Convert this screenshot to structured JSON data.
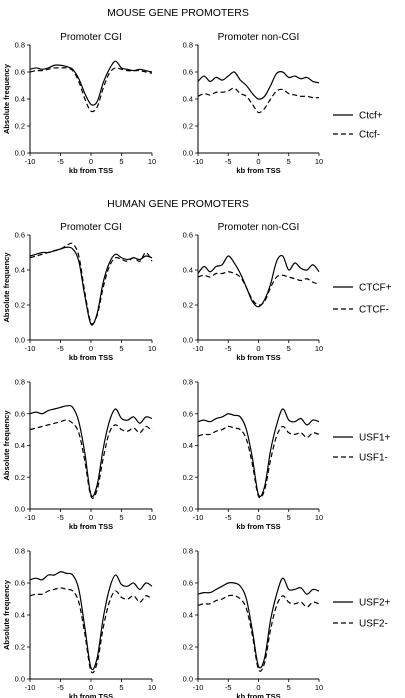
{
  "titles": {
    "mouse": "MOUSE GENE PROMOTERS",
    "human": "HUMAN GENE PROMOTERS"
  },
  "chart_data": [
    {
      "type": "line",
      "section": "mouse",
      "row": 0,
      "col": 0,
      "title": "Promoter CGI",
      "xlabel": "kb from TSS",
      "ylabel": "Absolute frequency",
      "xlim": [
        -10,
        10
      ],
      "ylim": [
        0,
        0.8
      ],
      "xticks": [
        -10,
        -5,
        0,
        5,
        10
      ],
      "yticks": [
        0.0,
        0.2,
        0.4,
        0.6,
        0.8
      ],
      "x": [
        -10,
        -9,
        -8,
        -7,
        -6,
        -5,
        -4,
        -3,
        -2,
        -1,
        0,
        1,
        2,
        3,
        4,
        5,
        6,
        7,
        8,
        9,
        10
      ],
      "series": [
        {
          "name": "Ctcf+",
          "style": "solid",
          "values": [
            0.62,
            0.63,
            0.62,
            0.63,
            0.65,
            0.65,
            0.64,
            0.62,
            0.55,
            0.44,
            0.36,
            0.38,
            0.52,
            0.62,
            0.68,
            0.63,
            0.62,
            0.61,
            0.62,
            0.61,
            0.6
          ]
        },
        {
          "name": "Ctcf-",
          "style": "dashed",
          "values": [
            0.6,
            0.61,
            0.61,
            0.62,
            0.63,
            0.63,
            0.63,
            0.61,
            0.53,
            0.4,
            0.31,
            0.34,
            0.48,
            0.59,
            0.63,
            0.62,
            0.61,
            0.61,
            0.61,
            0.6,
            0.59
          ]
        }
      ]
    },
    {
      "type": "line",
      "section": "mouse",
      "row": 0,
      "col": 1,
      "title": "Promoter non-CGI",
      "xlabel": "kb from TSS",
      "ylabel": "",
      "xlim": [
        -10,
        10
      ],
      "ylim": [
        0,
        0.8
      ],
      "xticks": [
        -10,
        -5,
        0,
        5,
        10
      ],
      "yticks": [
        0.0,
        0.2,
        0.4,
        0.6,
        0.8
      ],
      "x": [
        -10,
        -9,
        -8,
        -7,
        -6,
        -5,
        -4,
        -3,
        -2,
        -1,
        0,
        1,
        2,
        3,
        4,
        5,
        6,
        7,
        8,
        9,
        10
      ],
      "series": [
        {
          "name": "Ctcf+",
          "style": "solid",
          "values": [
            0.53,
            0.57,
            0.53,
            0.56,
            0.54,
            0.57,
            0.6,
            0.54,
            0.5,
            0.44,
            0.4,
            0.42,
            0.5,
            0.59,
            0.6,
            0.56,
            0.57,
            0.55,
            0.56,
            0.53,
            0.52
          ]
        },
        {
          "name": "Ctcf-",
          "style": "dashed",
          "values": [
            0.42,
            0.44,
            0.43,
            0.45,
            0.45,
            0.46,
            0.48,
            0.44,
            0.42,
            0.36,
            0.3,
            0.33,
            0.4,
            0.46,
            0.47,
            0.44,
            0.43,
            0.42,
            0.42,
            0.41,
            0.41
          ]
        }
      ]
    },
    {
      "type": "line",
      "section": "human",
      "row": 1,
      "col": 0,
      "title": "Promoter CGI",
      "xlabel": "kb from TSS",
      "ylabel": "Absolute frequency",
      "xlim": [
        -10,
        10
      ],
      "ylim": [
        0,
        0.6
      ],
      "xticks": [
        -10,
        -5,
        0,
        5,
        10
      ],
      "yticks": [
        0.0,
        0.2,
        0.4,
        0.6
      ],
      "x": [
        -10,
        -9,
        -8,
        -7,
        -6,
        -5,
        -4,
        -3,
        -2,
        -1,
        0,
        1,
        2,
        3,
        4,
        5,
        6,
        7,
        8,
        9,
        10
      ],
      "series": [
        {
          "name": "CTCF+",
          "style": "solid",
          "values": [
            0.48,
            0.49,
            0.5,
            0.5,
            0.51,
            0.52,
            0.53,
            0.52,
            0.45,
            0.25,
            0.09,
            0.15,
            0.33,
            0.44,
            0.49,
            0.47,
            0.46,
            0.47,
            0.46,
            0.48,
            0.47
          ]
        },
        {
          "name": "CTCF-",
          "style": "dashed",
          "values": [
            0.47,
            0.48,
            0.49,
            0.5,
            0.51,
            0.52,
            0.54,
            0.55,
            0.48,
            0.27,
            0.1,
            0.14,
            0.3,
            0.42,
            0.47,
            0.46,
            0.45,
            0.47,
            0.45,
            0.5,
            0.45
          ]
        }
      ]
    },
    {
      "type": "line",
      "section": "human",
      "row": 1,
      "col": 1,
      "title": "Promoter non-CGI",
      "xlabel": "kb from TSS",
      "ylabel": "",
      "xlim": [
        -10,
        10
      ],
      "ylim": [
        0,
        0.6
      ],
      "xticks": [
        -10,
        -5,
        0,
        5,
        10
      ],
      "yticks": [
        0.0,
        0.2,
        0.4,
        0.6
      ],
      "x": [
        -10,
        -9,
        -8,
        -7,
        -6,
        -5,
        -4,
        -3,
        -2,
        -1,
        0,
        1,
        2,
        3,
        4,
        5,
        6,
        7,
        8,
        9,
        10
      ],
      "series": [
        {
          "name": "CTCF+",
          "style": "solid",
          "values": [
            0.38,
            0.42,
            0.39,
            0.42,
            0.43,
            0.48,
            0.44,
            0.38,
            0.3,
            0.22,
            0.19,
            0.23,
            0.32,
            0.45,
            0.48,
            0.4,
            0.44,
            0.41,
            0.4,
            0.43,
            0.39
          ]
        },
        {
          "name": "CTCF-",
          "style": "dashed",
          "values": [
            0.36,
            0.37,
            0.36,
            0.38,
            0.38,
            0.39,
            0.38,
            0.36,
            0.3,
            0.23,
            0.2,
            0.22,
            0.3,
            0.36,
            0.37,
            0.36,
            0.35,
            0.34,
            0.35,
            0.33,
            0.32
          ]
        }
      ]
    },
    {
      "type": "line",
      "section": "human",
      "row": 2,
      "col": 0,
      "title": "",
      "xlabel": "kb from TSS",
      "ylabel": "Absolute frequency",
      "xlim": [
        -10,
        10
      ],
      "ylim": [
        0,
        0.8
      ],
      "xticks": [
        -10,
        -5,
        0,
        5,
        10
      ],
      "yticks": [
        0.0,
        0.2,
        0.4,
        0.6,
        0.8
      ],
      "x": [
        -10,
        -9,
        -8,
        -7,
        -6,
        -5,
        -4,
        -3,
        -2,
        -1,
        0,
        1,
        2,
        3,
        4,
        5,
        6,
        7,
        8,
        9,
        10
      ],
      "series": [
        {
          "name": "USF1+",
          "style": "solid",
          "values": [
            0.6,
            0.61,
            0.6,
            0.62,
            0.63,
            0.64,
            0.65,
            0.64,
            0.55,
            0.35,
            0.09,
            0.15,
            0.38,
            0.55,
            0.63,
            0.57,
            0.56,
            0.58,
            0.54,
            0.58,
            0.57
          ]
        },
        {
          "name": "USF1-",
          "style": "dashed",
          "values": [
            0.5,
            0.51,
            0.52,
            0.53,
            0.54,
            0.55,
            0.56,
            0.54,
            0.48,
            0.3,
            0.08,
            0.12,
            0.32,
            0.48,
            0.53,
            0.5,
            0.49,
            0.51,
            0.48,
            0.52,
            0.49
          ]
        }
      ]
    },
    {
      "type": "line",
      "section": "human",
      "row": 2,
      "col": 1,
      "title": "",
      "xlabel": "kb from TSS",
      "ylabel": "",
      "xlim": [
        -10,
        10
      ],
      "ylim": [
        0,
        0.8
      ],
      "xticks": [
        -10,
        -5,
        0,
        5,
        10
      ],
      "yticks": [
        0.0,
        0.2,
        0.4,
        0.6,
        0.8
      ],
      "x": [
        -10,
        -9,
        -8,
        -7,
        -6,
        -5,
        -4,
        -3,
        -2,
        -1,
        0,
        1,
        2,
        3,
        4,
        5,
        6,
        7,
        8,
        9,
        10
      ],
      "series": [
        {
          "name": "USF1+",
          "style": "solid",
          "values": [
            0.55,
            0.56,
            0.55,
            0.57,
            0.58,
            0.6,
            0.59,
            0.58,
            0.5,
            0.32,
            0.09,
            0.14,
            0.37,
            0.53,
            0.63,
            0.56,
            0.55,
            0.57,
            0.53,
            0.56,
            0.55
          ]
        },
        {
          "name": "USF1-",
          "style": "dashed",
          "values": [
            0.46,
            0.47,
            0.47,
            0.49,
            0.5,
            0.52,
            0.51,
            0.5,
            0.44,
            0.28,
            0.08,
            0.12,
            0.31,
            0.46,
            0.52,
            0.48,
            0.47,
            0.48,
            0.45,
            0.48,
            0.47
          ]
        }
      ]
    },
    {
      "type": "line",
      "section": "human",
      "row": 3,
      "col": 0,
      "title": "",
      "xlabel": "kb from TSS",
      "ylabel": "Absolute frequency",
      "xlim": [
        -10,
        10
      ],
      "ylim": [
        0,
        0.8
      ],
      "xticks": [
        -10,
        -5,
        0,
        5,
        10
      ],
      "yticks": [
        0.0,
        0.2,
        0.4,
        0.6,
        0.8
      ],
      "x": [
        -10,
        -9,
        -8,
        -7,
        -6,
        -5,
        -4,
        -3,
        -2,
        -1,
        0,
        1,
        2,
        3,
        4,
        5,
        6,
        7,
        8,
        9,
        10
      ],
      "series": [
        {
          "name": "USF2+",
          "style": "solid",
          "values": [
            0.62,
            0.63,
            0.62,
            0.65,
            0.65,
            0.67,
            0.66,
            0.65,
            0.56,
            0.32,
            0.07,
            0.13,
            0.38,
            0.56,
            0.65,
            0.59,
            0.58,
            0.6,
            0.56,
            0.6,
            0.58
          ]
        },
        {
          "name": "USF2-",
          "style": "dashed",
          "values": [
            0.52,
            0.53,
            0.53,
            0.55,
            0.56,
            0.57,
            0.56,
            0.55,
            0.48,
            0.28,
            0.05,
            0.1,
            0.32,
            0.48,
            0.55,
            0.51,
            0.5,
            0.52,
            0.48,
            0.52,
            0.5
          ]
        }
      ]
    },
    {
      "type": "line",
      "section": "human",
      "row": 3,
      "col": 1,
      "title": "",
      "xlabel": "kb from TSS",
      "ylabel": "",
      "xlim": [
        -10,
        10
      ],
      "ylim": [
        0,
        0.8
      ],
      "xticks": [
        -10,
        -5,
        0,
        5,
        10
      ],
      "yticks": [
        0.0,
        0.2,
        0.4,
        0.6,
        0.8
      ],
      "x": [
        -10,
        -9,
        -8,
        -7,
        -6,
        -5,
        -4,
        -3,
        -2,
        -1,
        0,
        1,
        2,
        3,
        4,
        5,
        6,
        7,
        8,
        9,
        10
      ],
      "series": [
        {
          "name": "USF2+",
          "style": "solid",
          "values": [
            0.53,
            0.54,
            0.54,
            0.56,
            0.58,
            0.6,
            0.6,
            0.58,
            0.5,
            0.3,
            0.08,
            0.13,
            0.37,
            0.53,
            0.63,
            0.56,
            0.56,
            0.57,
            0.53,
            0.56,
            0.55
          ]
        },
        {
          "name": "USF2-",
          "style": "dashed",
          "values": [
            0.46,
            0.47,
            0.47,
            0.49,
            0.5,
            0.52,
            0.52,
            0.5,
            0.44,
            0.27,
            0.06,
            0.1,
            0.31,
            0.46,
            0.52,
            0.48,
            0.47,
            0.48,
            0.45,
            0.48,
            0.47
          ]
        }
      ]
    }
  ],
  "legends": [
    {
      "row": 0,
      "entries": [
        {
          "label": "Ctcf+",
          "style": "solid"
        },
        {
          "label": "Ctcf-",
          "style": "dashed"
        }
      ]
    },
    {
      "row": 1,
      "entries": [
        {
          "label": "CTCF+",
          "style": "solid"
        },
        {
          "label": "CTCF-",
          "style": "dashed"
        }
      ]
    },
    {
      "row": 2,
      "entries": [
        {
          "label": "USF1+",
          "style": "solid"
        },
        {
          "label": "USF1-",
          "style": "dashed"
        }
      ]
    },
    {
      "row": 3,
      "entries": [
        {
          "label": "USF2+",
          "style": "solid"
        },
        {
          "label": "USF2-",
          "style": "dashed"
        }
      ]
    }
  ]
}
